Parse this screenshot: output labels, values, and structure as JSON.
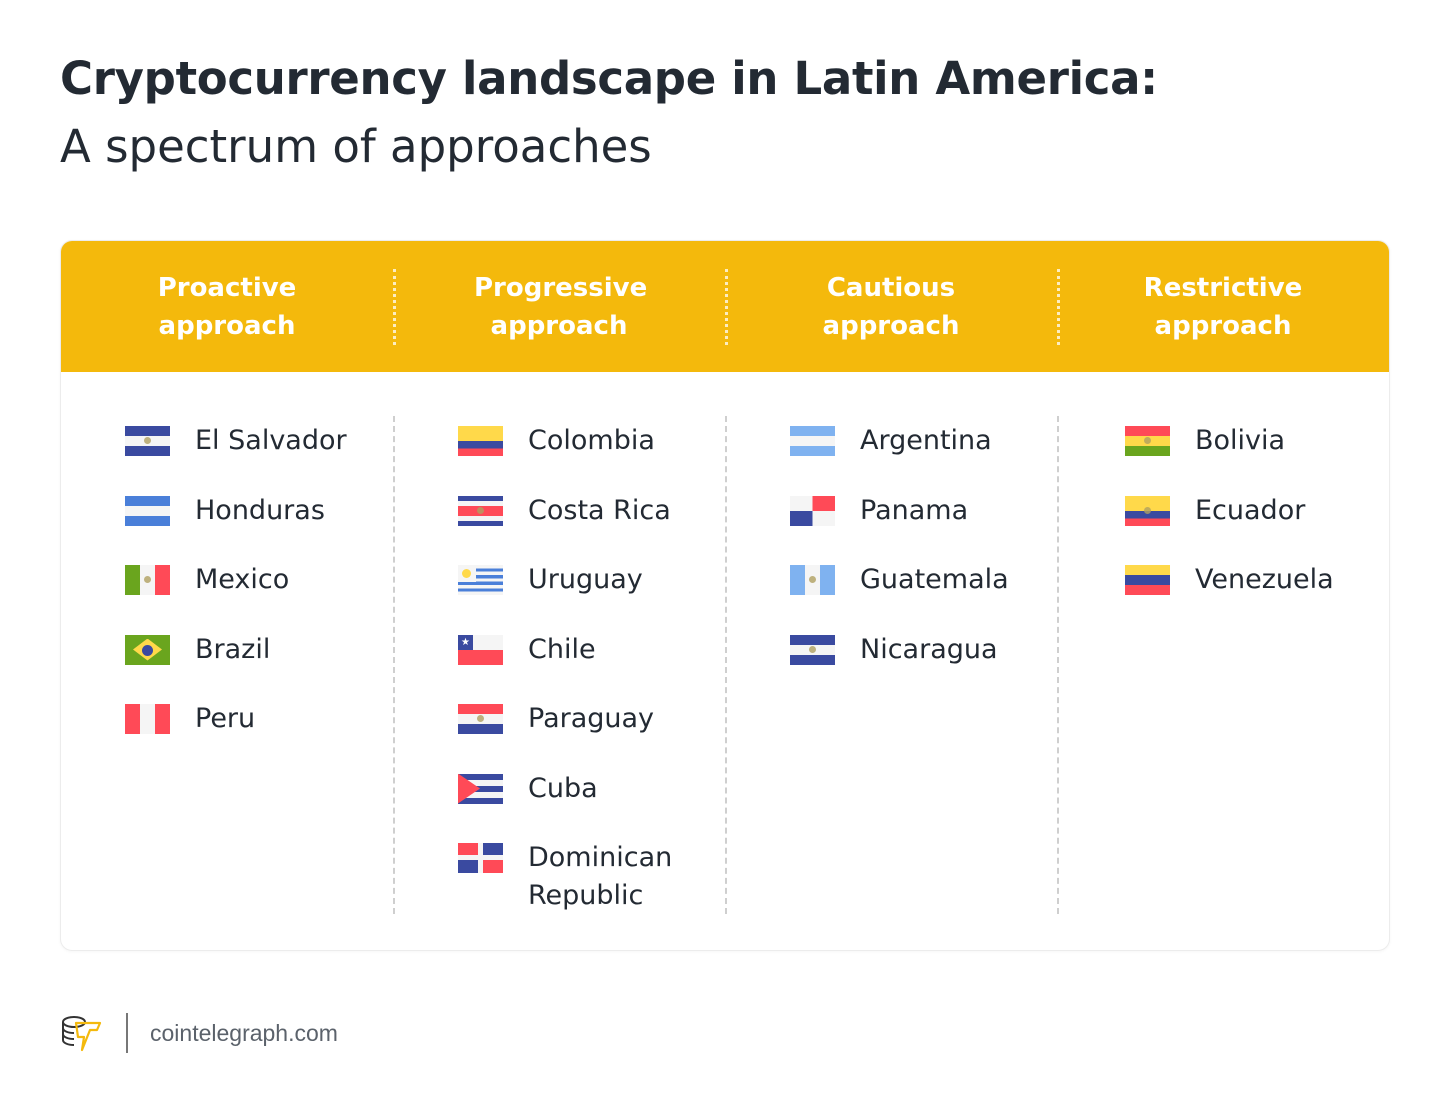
{
  "header": {
    "title": "Cryptocurrency landscape in Latin America:",
    "subtitle": "A spectrum of approaches"
  },
  "columns": [
    {
      "heading": "Proactive approach",
      "countries": [
        {
          "name": "El Salvador",
          "flag": "sv"
        },
        {
          "name": "Honduras",
          "flag": "hn"
        },
        {
          "name": "Mexico",
          "flag": "mx"
        },
        {
          "name": "Brazil",
          "flag": "br"
        },
        {
          "name": "Peru",
          "flag": "pe"
        }
      ]
    },
    {
      "heading": "Progressive approach",
      "countries": [
        {
          "name": "Colombia",
          "flag": "co"
        },
        {
          "name": "Costa Rica",
          "flag": "cr"
        },
        {
          "name": "Uruguay",
          "flag": "uy"
        },
        {
          "name": "Chile",
          "flag": "cl"
        },
        {
          "name": "Paraguay",
          "flag": "py"
        },
        {
          "name": "Cuba",
          "flag": "cu"
        },
        {
          "name": "Dominican Republic",
          "flag": "do"
        }
      ]
    },
    {
      "heading": "Cautious approach",
      "countries": [
        {
          "name": "Argentina",
          "flag": "ar"
        },
        {
          "name": "Panama",
          "flag": "pa"
        },
        {
          "name": "Guatemala",
          "flag": "gt"
        },
        {
          "name": "Nicaragua",
          "flag": "ni"
        }
      ]
    },
    {
      "heading": "Restrictive approach",
      "countries": [
        {
          "name": "Bolivia",
          "flag": "bo"
        },
        {
          "name": "Ecuador",
          "flag": "ec"
        },
        {
          "name": "Venezuela",
          "flag": "ve"
        }
      ]
    }
  ],
  "footer": {
    "site": "cointelegraph.com"
  },
  "colors": {
    "accent": "#f4b90c",
    "text": "#232a33"
  }
}
